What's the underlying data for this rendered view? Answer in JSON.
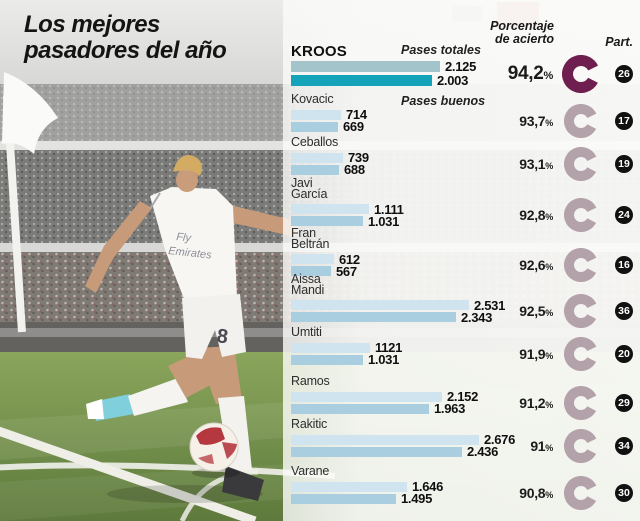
{
  "title": {
    "line1": "Los mejores",
    "line2": "pasadores del año"
  },
  "header": {
    "pct_label_line1": "Porcentaje",
    "pct_label_line2": "de acierto",
    "part_label": "Part.",
    "percent_symbol": "%"
  },
  "series_labels": {
    "totales": "Pases totales",
    "buenos": "Pases buenos"
  },
  "colors": {
    "donut_highlight": "#6e1e4f",
    "donut_normal": "#b4a2ab",
    "bar_totales": "#cfe4ee",
    "bar_buenos": "#a9cee0",
    "bar_totales_highlight": "#a3c4cb",
    "bar_buenos_highlight": "#14a3b8",
    "badge": "#111111",
    "title_text": "#141414"
  },
  "chart_data": {
    "type": "bar",
    "title": "Los mejores pasadores del año",
    "series": [
      "Pases totales",
      "Pases buenos"
    ],
    "x_max": 2676,
    "legend_position": "inline-first-row",
    "players": [
      {
        "name": "KROOS",
        "totales": 2125,
        "buenos": 2003,
        "totales_str": "2.125",
        "buenos_str": "2.003",
        "pct": 94.2,
        "pct_str": "94,2",
        "part": "26",
        "highlight": true
      },
      {
        "name": "Kovacic",
        "totales": 714,
        "buenos": 669,
        "totales_str": "714",
        "buenos_str": "669",
        "pct": 93.7,
        "pct_str": "93,7",
        "part": "17",
        "highlight": false
      },
      {
        "name": "Ceballos",
        "totales": 739,
        "buenos": 688,
        "totales_str": "739",
        "buenos_str": "688",
        "pct": 93.1,
        "pct_str": "93,1",
        "part": "19",
        "highlight": false
      },
      {
        "name": "Javi García",
        "totales": 1111,
        "buenos": 1031,
        "totales_str": "1.111",
        "buenos_str": "1.031",
        "pct": 92.8,
        "pct_str": "92,8",
        "part": "24",
        "highlight": false
      },
      {
        "name": "Fran Beltrán",
        "totales": 612,
        "buenos": 567,
        "totales_str": "612",
        "buenos_str": "567",
        "pct": 92.6,
        "pct_str": "92,6",
        "part": "16",
        "highlight": false
      },
      {
        "name": "Aissa Mandi",
        "totales": 2531,
        "buenos": 2343,
        "totales_str": "2.531",
        "buenos_str": "2.343",
        "pct": 92.5,
        "pct_str": "92,5",
        "part": "36",
        "highlight": false
      },
      {
        "name": "Umtiti",
        "totales": 1121,
        "buenos": 1031,
        "totales_str": "1121",
        "buenos_str": "1.031",
        "pct": 91.9,
        "pct_str": "91,9",
        "part": "20",
        "highlight": false
      },
      {
        "name": "Ramos",
        "totales": 2152,
        "buenos": 1963,
        "totales_str": "2.152",
        "buenos_str": "1.963",
        "pct": 91.2,
        "pct_str": "91,2",
        "part": "29",
        "highlight": false
      },
      {
        "name": "Rakitic",
        "totales": 2676,
        "buenos": 2436,
        "totales_str": "2.676",
        "buenos_str": "2.436",
        "pct": 91.0,
        "pct_str": "91",
        "part": "34",
        "highlight": false
      },
      {
        "name": "Varane",
        "totales": 1646,
        "buenos": 1495,
        "totales_str": "1.646",
        "buenos_str": "1.495",
        "pct": 90.8,
        "pct_str": "90,8",
        "part": "30",
        "highlight": false
      }
    ]
  }
}
